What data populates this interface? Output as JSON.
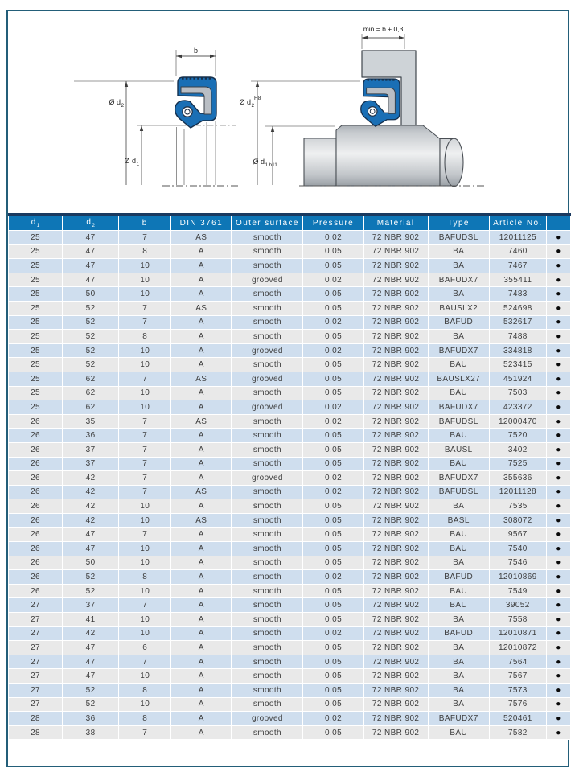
{
  "page": {
    "frame_color": "#235e79",
    "background": "#ffffff"
  },
  "diagram": {
    "labels": {
      "dim_b": "b",
      "dim_min_depth": "min = b + 0,3",
      "phi_d": "Ø d",
      "sub_1": "1",
      "sub_2": "2",
      "tol_d2": "H8",
      "tol_d1": "h11"
    },
    "colors": {
      "seal_blue": "#1a6fb5",
      "insert_gray": "#b9bec4",
      "housing_gray": "#ced3d7",
      "outline": "#16304d"
    }
  },
  "table": {
    "header_bar_color": "#1a3a60",
    "header_bg": "#0e76b6",
    "row_blue": "#cfdeee",
    "row_gray": "#e9e9e9",
    "columns": [
      {
        "label": "d",
        "sub": "1"
      },
      {
        "label": "d",
        "sub": "2"
      },
      {
        "label": "b"
      },
      {
        "label": "DIN 3761"
      },
      {
        "label": "Outer surface"
      },
      {
        "label": "Pressure"
      },
      {
        "label": "Material"
      },
      {
        "label": "Type"
      },
      {
        "label": "Article No."
      },
      {
        "label": ""
      }
    ],
    "col_keys": [
      "d1",
      "d2",
      "b",
      "din-3761",
      "outer-surface",
      "pressure",
      "material",
      "type",
      "article-no",
      "available"
    ],
    "rows": [
      [
        "25",
        "47",
        "7",
        "AS",
        "smooth",
        "0,02",
        "72 NBR 902",
        "BAFUDSL",
        "12011125",
        "●"
      ],
      [
        "25",
        "47",
        "8",
        "A",
        "smooth",
        "0,05",
        "72 NBR 902",
        "BA",
        "7460",
        "●"
      ],
      [
        "25",
        "47",
        "10",
        "A",
        "smooth",
        "0,05",
        "72 NBR 902",
        "BA",
        "7467",
        "●"
      ],
      [
        "25",
        "47",
        "10",
        "A",
        "grooved",
        "0,02",
        "72 NBR 902",
        "BAFUDX7",
        "355411",
        "●"
      ],
      [
        "25",
        "50",
        "10",
        "A",
        "smooth",
        "0,05",
        "72 NBR 902",
        "BA",
        "7483",
        "●"
      ],
      [
        "25",
        "52",
        "7",
        "AS",
        "smooth",
        "0,05",
        "72 NBR 902",
        "BAUSLX2",
        "524698",
        "●"
      ],
      [
        "25",
        "52",
        "7",
        "A",
        "smooth",
        "0,02",
        "72 NBR 902",
        "BAFUD",
        "532617",
        "●"
      ],
      [
        "25",
        "52",
        "8",
        "A",
        "smooth",
        "0,05",
        "72 NBR 902",
        "BA",
        "7488",
        "●"
      ],
      [
        "25",
        "52",
        "10",
        "A",
        "grooved",
        "0,02",
        "72 NBR 902",
        "BAFUDX7",
        "334818",
        "●"
      ],
      [
        "25",
        "52",
        "10",
        "A",
        "smooth",
        "0,05",
        "72 NBR 902",
        "BAU",
        "523415",
        "●"
      ],
      [
        "25",
        "62",
        "7",
        "AS",
        "grooved",
        "0,05",
        "72 NBR 902",
        "BAUSLX27",
        "451924",
        "●"
      ],
      [
        "25",
        "62",
        "10",
        "A",
        "smooth",
        "0,05",
        "72 NBR 902",
        "BAU",
        "7503",
        "●"
      ],
      [
        "25",
        "62",
        "10",
        "A",
        "grooved",
        "0,02",
        "72 NBR 902",
        "BAFUDX7",
        "423372",
        "●"
      ],
      [
        "26",
        "35",
        "7",
        "AS",
        "smooth",
        "0,02",
        "72 NBR 902",
        "BAFUDSL",
        "12000470",
        "●"
      ],
      [
        "26",
        "36",
        "7",
        "A",
        "smooth",
        "0,05",
        "72 NBR 902",
        "BAU",
        "7520",
        "●"
      ],
      [
        "26",
        "37",
        "7",
        "A",
        "smooth",
        "0,05",
        "72 NBR 902",
        "BAUSL",
        "3402",
        "●"
      ],
      [
        "26",
        "37",
        "7",
        "A",
        "smooth",
        "0,05",
        "72 NBR 902",
        "BAU",
        "7525",
        "●"
      ],
      [
        "26",
        "42",
        "7",
        "A",
        "grooved",
        "0,02",
        "72 NBR 902",
        "BAFUDX7",
        "355636",
        "●"
      ],
      [
        "26",
        "42",
        "7",
        "AS",
        "smooth",
        "0,02",
        "72 NBR 902",
        "BAFUDSL",
        "12011128",
        "●"
      ],
      [
        "26",
        "42",
        "10",
        "A",
        "smooth",
        "0,05",
        "72 NBR 902",
        "BA",
        "7535",
        "●"
      ],
      [
        "26",
        "42",
        "10",
        "AS",
        "smooth",
        "0,05",
        "72 NBR 902",
        "BASL",
        "308072",
        "●"
      ],
      [
        "26",
        "47",
        "7",
        "A",
        "smooth",
        "0,05",
        "72 NBR 902",
        "BAU",
        "9567",
        "●"
      ],
      [
        "26",
        "47",
        "10",
        "A",
        "smooth",
        "0,05",
        "72 NBR 902",
        "BAU",
        "7540",
        "●"
      ],
      [
        "26",
        "50",
        "10",
        "A",
        "smooth",
        "0,05",
        "72 NBR 902",
        "BA",
        "7546",
        "●"
      ],
      [
        "26",
        "52",
        "8",
        "A",
        "smooth",
        "0,02",
        "72 NBR 902",
        "BAFUD",
        "12010869",
        "●"
      ],
      [
        "26",
        "52",
        "10",
        "A",
        "smooth",
        "0,05",
        "72 NBR 902",
        "BAU",
        "7549",
        "●"
      ],
      [
        "27",
        "37",
        "7",
        "A",
        "smooth",
        "0,05",
        "72 NBR 902",
        "BAU",
        "39052",
        "●"
      ],
      [
        "27",
        "41",
        "10",
        "A",
        "smooth",
        "0,05",
        "72 NBR 902",
        "BA",
        "7558",
        "●"
      ],
      [
        "27",
        "42",
        "10",
        "A",
        "smooth",
        "0,02",
        "72 NBR 902",
        "BAFUD",
        "12010871",
        "●"
      ],
      [
        "27",
        "47",
        "6",
        "A",
        "smooth",
        "0,05",
        "72 NBR 902",
        "BA",
        "12010872",
        "●"
      ],
      [
        "27",
        "47",
        "7",
        "A",
        "smooth",
        "0,05",
        "72 NBR 902",
        "BA",
        "7564",
        "●"
      ],
      [
        "27",
        "47",
        "10",
        "A",
        "smooth",
        "0,05",
        "72 NBR 902",
        "BA",
        "7567",
        "●"
      ],
      [
        "27",
        "52",
        "8",
        "A",
        "smooth",
        "0,05",
        "72 NBR 902",
        "BA",
        "7573",
        "●"
      ],
      [
        "27",
        "52",
        "10",
        "A",
        "smooth",
        "0,05",
        "72 NBR 902",
        "BA",
        "7576",
        "●"
      ],
      [
        "28",
        "36",
        "8",
        "A",
        "grooved",
        "0,02",
        "72 NBR 902",
        "BAFUDX7",
        "520461",
        "●"
      ],
      [
        "28",
        "38",
        "7",
        "A",
        "smooth",
        "0,05",
        "72 NBR 902",
        "BAU",
        "7582",
        "●"
      ]
    ]
  }
}
